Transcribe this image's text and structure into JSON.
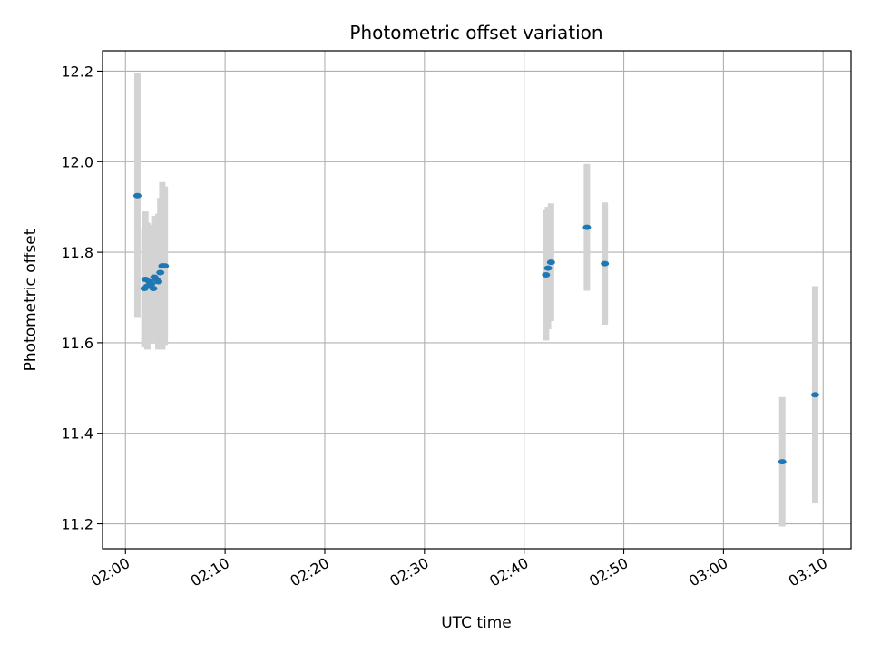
{
  "chart_data": {
    "type": "scatter",
    "title": "Photometric offset variation",
    "xlabel": "UTC time",
    "ylabel": "Photometric offset",
    "x_unit": "minutes",
    "x_ticks": [
      {
        "value": 0,
        "label": "02:00"
      },
      {
        "value": 10,
        "label": "02:10"
      },
      {
        "value": 20,
        "label": "02:20"
      },
      {
        "value": 30,
        "label": "02:30"
      },
      {
        "value": 40,
        "label": "02:40"
      },
      {
        "value": 50,
        "label": "02:50"
      },
      {
        "value": 60,
        "label": "03:00"
      },
      {
        "value": 70,
        "label": "03:10"
      }
    ],
    "y_ticks": [
      11.2,
      11.4,
      11.6,
      11.8,
      12.0,
      12.2
    ],
    "xlim": [
      -2.3,
      72.8
    ],
    "ylim": [
      11.145,
      12.245
    ],
    "grid": true,
    "colors": {
      "point": "#1f77b4",
      "errorbar": "#d3d3d3",
      "grid": "#b0b0b0"
    },
    "points": [
      {
        "x": 1.2,
        "y": 11.925,
        "yerr": 0.27
      },
      {
        "x": 1.9,
        "y": 11.72,
        "yerr": 0.13
      },
      {
        "x": 2.0,
        "y": 11.74,
        "yerr": 0.15
      },
      {
        "x": 2.2,
        "y": 11.725,
        "yerr": 0.14
      },
      {
        "x": 2.4,
        "y": 11.735,
        "yerr": 0.125
      },
      {
        "x": 2.6,
        "y": 11.73,
        "yerr": 0.13
      },
      {
        "x": 2.8,
        "y": 11.72,
        "yerr": 0.12
      },
      {
        "x": 2.9,
        "y": 11.745,
        "yerr": 0.135
      },
      {
        "x": 3.1,
        "y": 11.74,
        "yerr": 0.14
      },
      {
        "x": 3.3,
        "y": 11.735,
        "yerr": 0.15
      },
      {
        "x": 3.5,
        "y": 11.755,
        "yerr": 0.165
      },
      {
        "x": 3.7,
        "y": 11.77,
        "yerr": 0.185
      },
      {
        "x": 3.95,
        "y": 11.77,
        "yerr": 0.175
      },
      {
        "x": 42.2,
        "y": 11.75,
        "yerr": 0.145
      },
      {
        "x": 42.4,
        "y": 11.765,
        "yerr": 0.135
      },
      {
        "x": 42.7,
        "y": 11.778,
        "yerr": 0.13
      },
      {
        "x": 46.3,
        "y": 11.855,
        "yerr": 0.14
      },
      {
        "x": 48.1,
        "y": 11.775,
        "yerr": 0.135
      },
      {
        "x": 65.9,
        "y": 11.337,
        "yerr": 0.143
      },
      {
        "x": 69.2,
        "y": 11.485,
        "yerr": 0.24
      }
    ]
  }
}
